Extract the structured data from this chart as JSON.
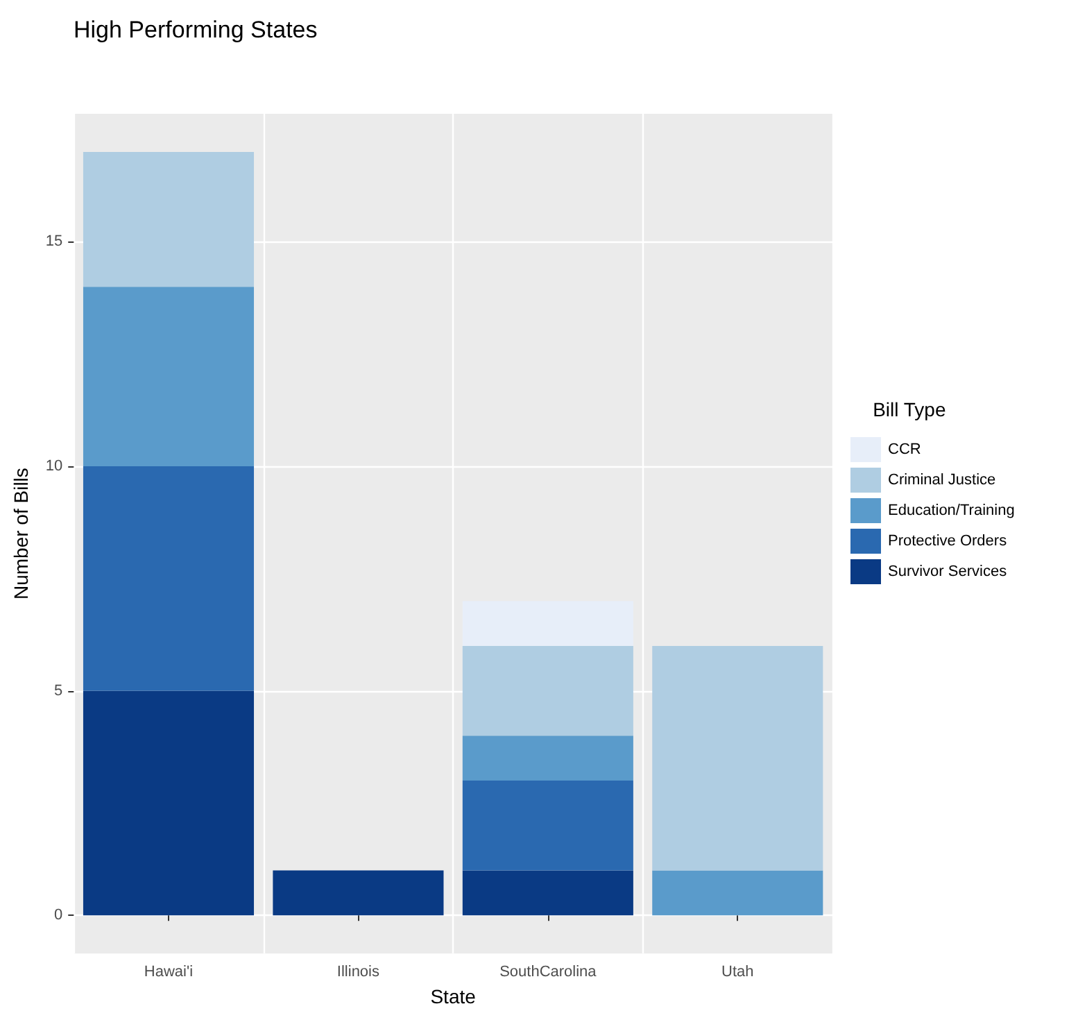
{
  "chart_data": {
    "type": "bar",
    "title": "High Performing States",
    "xlabel": "State",
    "ylabel": "Number of Bills",
    "legend_title": "Bill Type",
    "categories": [
      "Hawai'i",
      "Illinois",
      "SouthCarolina",
      "Utah"
    ],
    "stacked": true,
    "series": [
      {
        "name": "Survivor Services",
        "color": "#0a3a84",
        "values": [
          5,
          1,
          1,
          0
        ]
      },
      {
        "name": "Protective Orders",
        "color": "#2a69b0",
        "values": [
          5,
          0,
          2,
          0
        ]
      },
      {
        "name": "Education/Training",
        "color": "#5a9bcb",
        "values": [
          4,
          0,
          1,
          1
        ]
      },
      {
        "name": "Criminal Justice",
        "color": "#afcde2",
        "values": [
          3,
          0,
          2,
          5
        ]
      },
      {
        "name": "CCR",
        "color": "#e7eef9",
        "values": [
          0,
          0,
          1,
          0
        ]
      }
    ],
    "ylim": [
      -0.85,
      17.85
    ],
    "yticks": [
      0,
      5,
      10,
      15
    ],
    "grid": true,
    "legend": "right"
  }
}
